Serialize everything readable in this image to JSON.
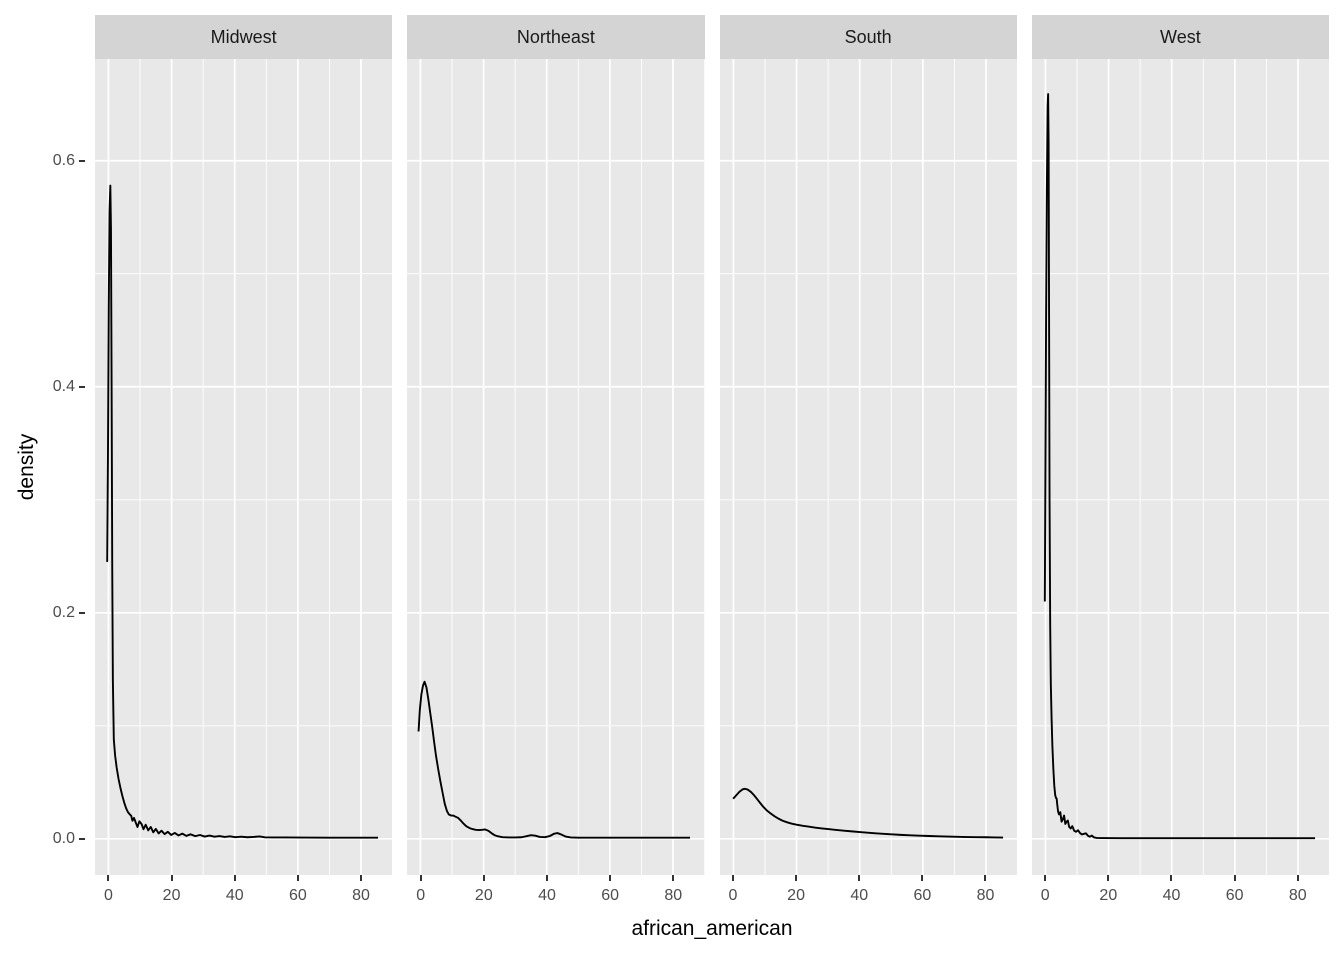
{
  "chart_data": {
    "type": "line",
    "subtype": "faceted_density_plot",
    "title": "",
    "xlabel": "african_american",
    "ylabel": "density",
    "legend": "none",
    "grid": "on",
    "facet_row_position": "top",
    "x_domain": [
      -4.26,
      89.9
    ],
    "y_domain": [
      -0.032,
      0.69
    ],
    "x_major_ticks": [
      0,
      20,
      40,
      60,
      80
    ],
    "x_minor_ticks": [
      10,
      30,
      50,
      70
    ],
    "y_major_ticks": [
      0.0,
      0.2,
      0.4,
      0.6
    ],
    "y_tick_labels": [
      "0.0",
      "0.2",
      "0.4",
      "0.6"
    ],
    "y_minor_ticks": [
      0.1,
      0.3,
      0.5
    ],
    "facets": [
      {
        "name": "Midwest",
        "peak": {
          "x": 0.6,
          "y": 0.578
        },
        "points": [
          [
            -0.4,
            0.245
          ],
          [
            -0.15,
            0.34
          ],
          [
            0.1,
            0.47
          ],
          [
            0.35,
            0.555
          ],
          [
            0.6,
            0.578
          ],
          [
            0.8,
            0.54
          ],
          [
            1.0,
            0.4
          ],
          [
            1.2,
            0.24
          ],
          [
            1.4,
            0.14
          ],
          [
            1.7,
            0.088
          ],
          [
            2.1,
            0.074
          ],
          [
            2.6,
            0.063
          ],
          [
            3.2,
            0.053
          ],
          [
            3.8,
            0.045
          ],
          [
            4.4,
            0.038
          ],
          [
            5.0,
            0.032
          ],
          [
            5.6,
            0.027
          ],
          [
            6.2,
            0.0235
          ],
          [
            6.8,
            0.0215
          ],
          [
            7.2,
            0.0205
          ],
          [
            7.6,
            0.016
          ],
          [
            8.1,
            0.0185
          ],
          [
            8.7,
            0.014
          ],
          [
            9.2,
            0.0105
          ],
          [
            9.8,
            0.0155
          ],
          [
            10.5,
            0.013
          ],
          [
            11.1,
            0.0085
          ],
          [
            11.8,
            0.0125
          ],
          [
            12.6,
            0.0075
          ],
          [
            13.4,
            0.0105
          ],
          [
            14.2,
            0.0058
          ],
          [
            15.0,
            0.0088
          ],
          [
            15.9,
            0.0048
          ],
          [
            16.8,
            0.0072
          ],
          [
            17.8,
            0.0042
          ],
          [
            18.8,
            0.0062
          ],
          [
            19.9,
            0.0034
          ],
          [
            21.0,
            0.0052
          ],
          [
            22.2,
            0.003
          ],
          [
            23.4,
            0.0046
          ],
          [
            24.7,
            0.0026
          ],
          [
            26.0,
            0.004
          ],
          [
            27.5,
            0.0024
          ],
          [
            29.0,
            0.0034
          ],
          [
            30.5,
            0.002
          ],
          [
            32.0,
            0.0029
          ],
          [
            33.6,
            0.0019
          ],
          [
            35.2,
            0.0025
          ],
          [
            36.8,
            0.0017
          ],
          [
            38.5,
            0.0022
          ],
          [
            40.2,
            0.0015
          ],
          [
            42.0,
            0.0019
          ],
          [
            44.0,
            0.0014
          ],
          [
            46.0,
            0.0017
          ],
          [
            47.9,
            0.0021
          ],
          [
            49.5,
            0.0013
          ],
          [
            52.0,
            0.0012
          ],
          [
            56.0,
            0.0012
          ],
          [
            62.0,
            0.0011
          ],
          [
            70.0,
            0.001
          ],
          [
            78.0,
            0.001
          ],
          [
            85.4,
            0.001
          ]
        ]
      },
      {
        "name": "Northeast",
        "peak": {
          "x": 1.3,
          "y": 0.139
        },
        "points": [
          [
            -0.6,
            0.095
          ],
          [
            -0.2,
            0.114
          ],
          [
            0.3,
            0.128
          ],
          [
            0.8,
            0.1355
          ],
          [
            1.3,
            0.139
          ],
          [
            1.9,
            0.134
          ],
          [
            2.5,
            0.1235
          ],
          [
            3.1,
            0.1115
          ],
          [
            3.7,
            0.0995
          ],
          [
            4.3,
            0.0865
          ],
          [
            4.9,
            0.074
          ],
          [
            5.6,
            0.062
          ],
          [
            6.3,
            0.051
          ],
          [
            7.0,
            0.041
          ],
          [
            7.7,
            0.031
          ],
          [
            8.4,
            0.0245
          ],
          [
            9.0,
            0.0215
          ],
          [
            9.7,
            0.0206
          ],
          [
            10.4,
            0.0206
          ],
          [
            11.1,
            0.0196
          ],
          [
            11.9,
            0.0186
          ],
          [
            12.7,
            0.0164
          ],
          [
            13.6,
            0.0136
          ],
          [
            14.5,
            0.0112
          ],
          [
            15.5,
            0.0096
          ],
          [
            16.5,
            0.0086
          ],
          [
            17.5,
            0.008
          ],
          [
            18.5,
            0.0078
          ],
          [
            19.5,
            0.008
          ],
          [
            20.5,
            0.0083
          ],
          [
            21.5,
            0.0072
          ],
          [
            22.5,
            0.005
          ],
          [
            23.5,
            0.0032
          ],
          [
            24.6,
            0.0022
          ],
          [
            26.0,
            0.0015
          ],
          [
            28.0,
            0.0012
          ],
          [
            30.0,
            0.0012
          ],
          [
            32.0,
            0.0014
          ],
          [
            33.6,
            0.0023
          ],
          [
            35.0,
            0.0032
          ],
          [
            36.4,
            0.0028
          ],
          [
            37.8,
            0.0017
          ],
          [
            39.4,
            0.0015
          ],
          [
            41.0,
            0.0025
          ],
          [
            42.4,
            0.0046
          ],
          [
            43.4,
            0.0051
          ],
          [
            44.6,
            0.0038
          ],
          [
            46.0,
            0.002
          ],
          [
            47.6,
            0.0012
          ],
          [
            50.0,
            0.001
          ],
          [
            56.0,
            0.001
          ],
          [
            64.0,
            0.001
          ],
          [
            74.0,
            0.001
          ],
          [
            85.4,
            0.001
          ]
        ]
      },
      {
        "name": "South",
        "peak": {
          "x": 3.6,
          "y": 0.0443
        },
        "points": [
          [
            -0.1,
            0.0355
          ],
          [
            0.9,
            0.0386
          ],
          [
            1.9,
            0.0417
          ],
          [
            2.9,
            0.0438
          ],
          [
            3.6,
            0.0443
          ],
          [
            4.5,
            0.0436
          ],
          [
            5.5,
            0.0416
          ],
          [
            6.5,
            0.0387
          ],
          [
            7.5,
            0.0352
          ],
          [
            8.5,
            0.0316
          ],
          [
            9.5,
            0.0282
          ],
          [
            10.5,
            0.0253
          ],
          [
            11.6,
            0.0228
          ],
          [
            12.8,
            0.0204
          ],
          [
            14.1,
            0.0181
          ],
          [
            15.5,
            0.0161
          ],
          [
            17.0,
            0.0146
          ],
          [
            18.5,
            0.0134
          ],
          [
            20.0,
            0.0125
          ],
          [
            22.0,
            0.0115
          ],
          [
            24.0,
            0.0107
          ],
          [
            26.0,
            0.0099
          ],
          [
            28.0,
            0.0092
          ],
          [
            30.0,
            0.0086
          ],
          [
            32.5,
            0.0079
          ],
          [
            35.0,
            0.0072
          ],
          [
            37.5,
            0.0066
          ],
          [
            40.0,
            0.006
          ],
          [
            42.5,
            0.0054
          ],
          [
            45.0,
            0.0049
          ],
          [
            47.5,
            0.0044
          ],
          [
            50.0,
            0.004
          ],
          [
            53.0,
            0.0035
          ],
          [
            56.0,
            0.0031
          ],
          [
            59.0,
            0.0028
          ],
          [
            62.0,
            0.0025
          ],
          [
            65.0,
            0.0022
          ],
          [
            68.0,
            0.002
          ],
          [
            71.0,
            0.0018
          ],
          [
            74.0,
            0.0016
          ],
          [
            77.0,
            0.0015
          ],
          [
            80.0,
            0.0014
          ],
          [
            82.7,
            0.0012
          ],
          [
            85.4,
            0.0011
          ]
        ]
      },
      {
        "name": "West",
        "peak": {
          "x": 0.85,
          "y": 0.659
        },
        "points": [
          [
            -0.2,
            0.21
          ],
          [
            0.0,
            0.33
          ],
          [
            0.2,
            0.46
          ],
          [
            0.45,
            0.575
          ],
          [
            0.7,
            0.648
          ],
          [
            0.85,
            0.659
          ],
          [
            1.0,
            0.615
          ],
          [
            1.15,
            0.46
          ],
          [
            1.3,
            0.3
          ],
          [
            1.5,
            0.19
          ],
          [
            1.7,
            0.137
          ],
          [
            1.95,
            0.106
          ],
          [
            2.2,
            0.082
          ],
          [
            2.5,
            0.062
          ],
          [
            2.8,
            0.047
          ],
          [
            3.1,
            0.0385
          ],
          [
            3.35,
            0.0362
          ],
          [
            3.55,
            0.0356
          ],
          [
            3.75,
            0.03
          ],
          [
            4.0,
            0.0242
          ],
          [
            4.3,
            0.0216
          ],
          [
            4.7,
            0.0236
          ],
          [
            5.1,
            0.0152
          ],
          [
            5.5,
            0.0172
          ],
          [
            5.9,
            0.0206
          ],
          [
            6.3,
            0.0132
          ],
          [
            6.7,
            0.0152
          ],
          [
            7.1,
            0.0162
          ],
          [
            7.5,
            0.0106
          ],
          [
            8.0,
            0.0092
          ],
          [
            8.5,
            0.0112
          ],
          [
            9.1,
            0.0072
          ],
          [
            9.7,
            0.0062
          ],
          [
            10.3,
            0.0076
          ],
          [
            10.9,
            0.0053
          ],
          [
            11.5,
            0.0039
          ],
          [
            12.1,
            0.0043
          ],
          [
            12.8,
            0.0049
          ],
          [
            13.5,
            0.0026
          ],
          [
            14.1,
            0.0019
          ],
          [
            14.7,
            0.0029
          ],
          [
            15.3,
            0.0013
          ],
          [
            16.2,
            0.0008
          ],
          [
            18.0,
            0.0007
          ],
          [
            24.0,
            0.0006
          ],
          [
            36.0,
            0.0006
          ],
          [
            52.0,
            0.0006
          ],
          [
            70.0,
            0.0006
          ],
          [
            85.4,
            0.0006
          ]
        ]
      }
    ],
    "colors": {
      "panel_background": "#e8e8e8",
      "strip_background": "#d4d4d4",
      "gridline": "#ffffff",
      "curve": "#000000",
      "axis_text": "#4d4d4d",
      "tick_mark": "#333333",
      "strip_text": "#1a1a1a",
      "title_text": "#000000"
    }
  }
}
